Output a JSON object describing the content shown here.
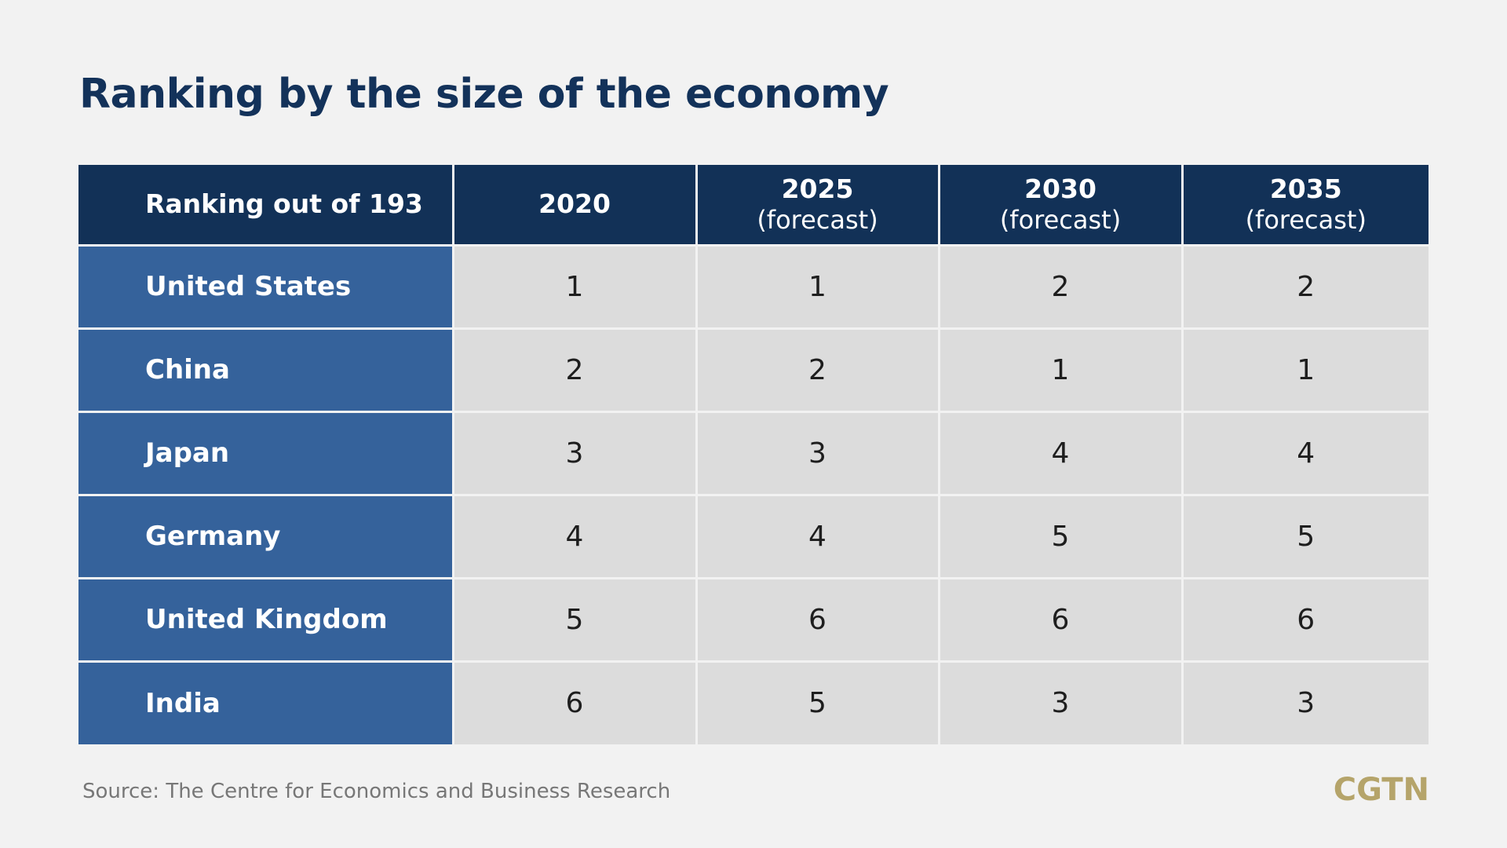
{
  "chart_data": {
    "type": "table",
    "title": "Ranking by the size of the economy",
    "corner_header": "Ranking out of 193",
    "columns": [
      {
        "year": "2020",
        "note": ""
      },
      {
        "year": "2025",
        "note": "(forecast)"
      },
      {
        "year": "2030",
        "note": "(forecast)"
      },
      {
        "year": "2035",
        "note": "(forecast)"
      }
    ],
    "rows": [
      {
        "country": "United States",
        "values": [
          "1",
          "1",
          "2",
          "2"
        ]
      },
      {
        "country": "China",
        "values": [
          "2",
          "2",
          "1",
          "1"
        ]
      },
      {
        "country": "Japan",
        "values": [
          "3",
          "3",
          "4",
          "4"
        ]
      },
      {
        "country": "Germany",
        "values": [
          "4",
          "4",
          "5",
          "5"
        ]
      },
      {
        "country": "United Kingdom",
        "values": [
          "5",
          "6",
          "6",
          "6"
        ]
      },
      {
        "country": "India",
        "values": [
          "6",
          "5",
          "3",
          "3"
        ]
      }
    ],
    "source": "Source: The Centre for Economics and Business Research",
    "colors": {
      "background": "#f2f2f2",
      "header": "#123157",
      "country_cell": "#35629b",
      "value_cell": "#dcdcdc",
      "title": "#13325a",
      "logo": "#b5a46a"
    }
  },
  "brand": {
    "logo_text": "CGTN"
  }
}
